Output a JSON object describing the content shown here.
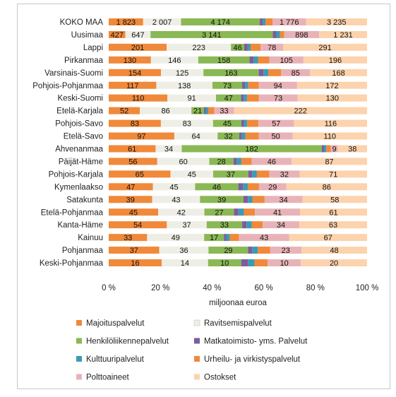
{
  "chart_data": {
    "type": "bar",
    "orientation": "horizontal",
    "stacked": "percent",
    "categories": [
      "KOKO MAA",
      "Uusimaa",
      "Lappi",
      "Pirkanmaa",
      "Varsinais-Suomi",
      "Pohjois-Pohjanmaa",
      "Keski-Suomi",
      "Etelä-Karjala",
      "Pohjois-Savo",
      "Etelä-Savo",
      "Ahvenanmaa",
      "Päijät-Häme",
      "Pohjois-Karjala",
      "Kymenlaakso",
      "Satakunta",
      "Etelä-Pohjanmaa",
      "Kanta-Häme",
      "Kainuu",
      "Pohjanmaa",
      "Keski-Pohjanmaa"
    ],
    "series": [
      {
        "name": "Majoituspalvelut",
        "color": "#f0893a",
        "values": [
          1823,
          427,
          201,
          130,
          154,
          117,
          110,
          52,
          83,
          97,
          61,
          56,
          65,
          47,
          39,
          45,
          54,
          33,
          37,
          16
        ],
        "labels": [
          "1 823",
          "427",
          "201",
          "130",
          "154",
          "117",
          "110",
          "52",
          "83",
          "97",
          "61",
          "56",
          "65",
          "47",
          "39",
          "45",
          "54",
          "33",
          "37",
          "16"
        ]
      },
      {
        "name": "Ravitsemispalvelut",
        "color": "#eeeee6",
        "values": [
          2007,
          647,
          223,
          146,
          125,
          138,
          91,
          86,
          83,
          64,
          34,
          60,
          45,
          45,
          43,
          42,
          37,
          49,
          36,
          14
        ],
        "labels": [
          "2 007",
          "647",
          "223",
          "146",
          "125",
          "138",
          "91",
          "86",
          "83",
          "64",
          "34",
          "60",
          "45",
          "45",
          "43",
          "42",
          "37",
          "49",
          "36",
          "14"
        ]
      },
      {
        "name": "Henkilöliikennepalvelut",
        "color": "#8ab855",
        "values": [
          4174,
          3141,
          46,
          158,
          163,
          73,
          47,
          21,
          45,
          32,
          182,
          28,
          37,
          46,
          39,
          27,
          33,
          17,
          29,
          10
        ],
        "labels": [
          "4 174",
          "3 141",
          "46",
          "158",
          "163",
          "73",
          "47",
          "21",
          "45",
          "32",
          "182",
          "28",
          "37",
          "46",
          "39",
          "27",
          "33",
          "17",
          "29",
          "10"
        ]
      },
      {
        "name": "Matkatoimisto- yms. Palvelut",
        "color": "#7d5c9c",
        "values": [
          150,
          90,
          12,
          12,
          14,
          7,
          5,
          3,
          4,
          4,
          3,
          4,
          4,
          5,
          4,
          4,
          4,
          2,
          3,
          2
        ]
      },
      {
        "name": "Kulttuuripalvelut",
        "color": "#3a9bb2",
        "values": [
          160,
          90,
          10,
          14,
          14,
          8,
          6,
          4,
          5,
          5,
          3,
          5,
          5,
          5,
          4,
          5,
          5,
          3,
          4,
          2
        ]
      },
      {
        "name": "Urheilu- ja virkistyspalvelut",
        "color": "#f0893a",
        "values": [
          360,
          110,
          35,
          35,
          38,
          26,
          22,
          10,
          18,
          20,
          6,
          12,
          13,
          12,
          11,
          10,
          10,
          8,
          9,
          4
        ]
      },
      {
        "name": "Polttoaineet",
        "color": "#e8b3b8",
        "values": [
          1776,
          898,
          78,
          105,
          85,
          94,
          73,
          33,
          57,
          50,
          9,
          46,
          32,
          29,
          34,
          41,
          34,
          43,
          23,
          10
        ],
        "labels": [
          "1 776",
          "898",
          "78",
          "105",
          "85",
          "94",
          "73",
          "33",
          "57",
          "50",
          "9",
          "46",
          "32",
          "29",
          "34",
          "41",
          "34",
          "43",
          "23",
          "10"
        ]
      },
      {
        "name": "Ostokset",
        "color": "#fcd3ad",
        "values": [
          3235,
          1231,
          291,
          196,
          168,
          172,
          130,
          222,
          116,
          110,
          38,
          87,
          71,
          86,
          58,
          61,
          63,
          67,
          48,
          20
        ],
        "labels": [
          "3 235",
          "1 231",
          "291",
          "196",
          "168",
          "172",
          "130",
          "222",
          "116",
          "110",
          "38",
          "87",
          "71",
          "86",
          "58",
          "61",
          "63",
          "67",
          "48",
          "20"
        ]
      }
    ],
    "labelled_series": [
      0,
      1,
      2,
      6,
      7
    ],
    "xticks": [
      "0 %",
      "20 %",
      "40 %",
      "60 %",
      "80 %",
      "100 %"
    ],
    "xlabel": "miljoonaa euroa",
    "xlim": [
      0,
      100
    ],
    "grid": false,
    "legend_position": "bottom"
  }
}
